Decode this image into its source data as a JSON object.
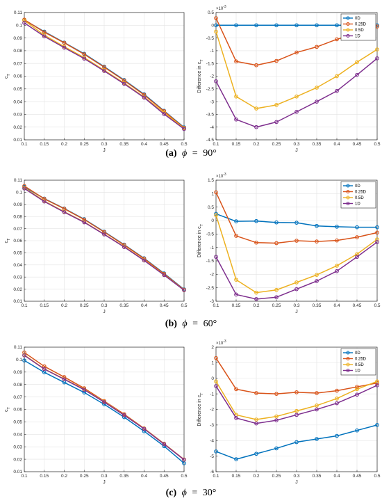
{
  "chart_data": [
    {
      "type": "line",
      "xlabel": "J",
      "ylabel": "c_T",
      "xlim": [
        0.1,
        0.5
      ],
      "ylim": [
        0.01,
        0.11
      ],
      "xticks": [
        "0.1",
        "0.15",
        "0.2",
        "0.25",
        "0.3",
        "0.35",
        "0.4",
        "0.45",
        "0.5"
      ],
      "yticks": [
        "0.01",
        "0.02",
        "0.03",
        "0.04",
        "0.05",
        "0.06",
        "0.07",
        "0.08",
        "0.09",
        "0.1",
        "0.11"
      ],
      "grid": true,
      "x": [
        0.1,
        0.15,
        0.2,
        0.25,
        0.3,
        0.35,
        0.4,
        0.45,
        0.5
      ],
      "series": [
        {
          "color": "#0072BD",
          "values": [
            0.1041,
            0.095,
            0.0864,
            0.0776,
            0.0675,
            0.057,
            0.0458,
            0.0328,
            0.0198
          ]
        },
        {
          "color": "#D95319",
          "values": [
            0.1044,
            0.0946,
            0.0862,
            0.0772,
            0.0671,
            0.0566,
            0.0453,
            0.0325,
            0.0194
          ]
        },
        {
          "color": "#EDB120",
          "values": [
            0.1038,
            0.0922,
            0.0832,
            0.0746,
            0.0647,
            0.0546,
            0.0436,
            0.0314,
            0.019
          ]
        },
        {
          "color": "#7E2F8E",
          "values": [
            0.1019,
            0.0913,
            0.0824,
            0.0738,
            0.0641,
            0.054,
            0.0432,
            0.0302,
            0.0185
          ]
        }
      ]
    },
    {
      "type": "line",
      "xlabel": "J",
      "ylabel": "Difference in c_T",
      "exponent_label": "×10",
      "exponent_power": "-3",
      "xlim": [
        0.1,
        0.5
      ],
      "ylim": [
        -4.5,
        0.5
      ],
      "xticks": [
        "0.1",
        "0.15",
        "0.2",
        "0.25",
        "0.3",
        "0.35",
        "0.4",
        "0.45",
        "0.5"
      ],
      "yticks": [
        "-4.5",
        "-4",
        "-3.5",
        "-3",
        "-2.5",
        "-2",
        "-1.5",
        "-1",
        "-0.5",
        "0",
        "0.5"
      ],
      "grid": true,
      "legend": "top-right",
      "x": [
        0.1,
        0.15,
        0.2,
        0.25,
        0.3,
        0.35,
        0.4,
        0.45,
        0.5
      ],
      "series": [
        {
          "name": "0D",
          "color": "#0072BD",
          "values": [
            0,
            0,
            0,
            0,
            0,
            0,
            0,
            0,
            0
          ]
        },
        {
          "name": "0.25D",
          "color": "#D95319",
          "values": [
            0.28,
            -1.42,
            -1.57,
            -1.4,
            -1.07,
            -0.85,
            -0.55,
            -0.33,
            -0.05
          ]
        },
        {
          "name": "0.5D",
          "color": "#EDB120",
          "values": [
            -0.25,
            -2.8,
            -3.27,
            -3.13,
            -2.8,
            -2.45,
            -2.0,
            -1.45,
            -0.95
          ]
        },
        {
          "name": "1D",
          "color": "#7E2F8E",
          "values": [
            -2.2,
            -3.7,
            -4.0,
            -3.8,
            -3.4,
            -3.0,
            -2.58,
            -1.95,
            -1.3
          ]
        }
      ]
    },
    {
      "type": "line",
      "xlabel": "J",
      "ylabel": "c_T",
      "xlim": [
        0.1,
        0.5
      ],
      "ylim": [
        0.01,
        0.11
      ],
      "xticks": [
        "0.1",
        "0.15",
        "0.2",
        "0.25",
        "0.3",
        "0.35",
        "0.4",
        "0.45",
        "0.5"
      ],
      "yticks": [
        "0.01",
        "0.02",
        "0.03",
        "0.04",
        "0.05",
        "0.06",
        "0.07",
        "0.08",
        "0.09",
        "0.1",
        "0.11"
      ],
      "grid": true,
      "x": [
        0.1,
        0.15,
        0.2,
        0.25,
        0.3,
        0.35,
        0.4,
        0.45,
        0.5
      ],
      "series": [
        {
          "color": "#0072BD",
          "values": [
            0.1045,
            0.0948,
            0.0866,
            0.0778,
            0.0675,
            0.0568,
            0.0455,
            0.033,
            0.0198
          ]
        },
        {
          "color": "#D95319",
          "values": [
            0.1052,
            0.0946,
            0.0864,
            0.0775,
            0.0672,
            0.0565,
            0.0452,
            0.0326,
            0.0195
          ]
        },
        {
          "color": "#EDB120",
          "values": [
            0.1038,
            0.0928,
            0.084,
            0.0755,
            0.0654,
            0.0552,
            0.044,
            0.0318,
            0.0192
          ]
        },
        {
          "color": "#7E2F8E",
          "values": [
            0.1032,
            0.0924,
            0.0836,
            0.0752,
            0.0652,
            0.0548,
            0.0437,
            0.0316,
            0.0191
          ]
        }
      ]
    },
    {
      "type": "line",
      "xlabel": "J",
      "ylabel": "Difference in c_T",
      "exponent_label": "×10",
      "exponent_power": "-3",
      "xlim": [
        0.1,
        0.5
      ],
      "ylim": [
        -3,
        1.5
      ],
      "xticks": [
        "0.1",
        "0.15",
        "0.2",
        "0.25",
        "0.3",
        "0.35",
        "0.4",
        "0.45",
        "0.5"
      ],
      "yticks": [
        "-3",
        "-2.5",
        "-2",
        "-1.5",
        "-1",
        "-0.5",
        "0",
        "0.5",
        "1",
        "1.5"
      ],
      "grid": true,
      "legend": "top-right",
      "x": [
        0.1,
        0.15,
        0.2,
        0.25,
        0.3,
        0.35,
        0.4,
        0.45,
        0.5
      ],
      "series": [
        {
          "name": "0D",
          "color": "#0072BD",
          "values": [
            0.25,
            -0.03,
            -0.02,
            -0.07,
            -0.08,
            -0.2,
            -0.23,
            -0.25,
            -0.25
          ]
        },
        {
          "name": "0.25D",
          "color": "#D95319",
          "values": [
            1.05,
            -0.57,
            -0.82,
            -0.84,
            -0.75,
            -0.78,
            -0.74,
            -0.62,
            -0.45
          ]
        },
        {
          "name": "0.5D",
          "color": "#EDB120",
          "values": [
            0.2,
            -2.2,
            -2.68,
            -2.58,
            -2.3,
            -2.02,
            -1.68,
            -1.25,
            -0.7
          ]
        },
        {
          "name": "1D",
          "color": "#7E2F8E",
          "values": [
            -1.35,
            -2.75,
            -2.92,
            -2.85,
            -2.55,
            -2.25,
            -1.88,
            -1.35,
            -0.8
          ]
        }
      ]
    },
    {
      "type": "line",
      "xlabel": "J",
      "ylabel": "c_T",
      "xlim": [
        0.1,
        0.5
      ],
      "ylim": [
        0.01,
        0.11
      ],
      "xticks": [
        "0.1",
        "0.15",
        "0.2",
        "0.25",
        "0.3",
        "0.35",
        "0.4",
        "0.45",
        "0.5"
      ],
      "yticks": [
        "0.01",
        "0.02",
        "0.03",
        "0.04",
        "0.05",
        "0.06",
        "0.07",
        "0.08",
        "0.09",
        "0.1",
        "0.11"
      ],
      "grid": true,
      "x": [
        0.1,
        0.15,
        0.2,
        0.25,
        0.3,
        0.35,
        0.4,
        0.45,
        0.5
      ],
      "series": [
        {
          "color": "#0072BD",
          "values": [
            0.0993,
            0.0898,
            0.0817,
            0.0736,
            0.0641,
            0.0538,
            0.0425,
            0.0305,
            0.0168
          ]
        },
        {
          "color": "#D95319",
          "values": [
            0.1057,
            0.0946,
            0.086,
            0.077,
            0.0667,
            0.0562,
            0.0448,
            0.0325,
            0.0198
          ]
        },
        {
          "color": "#EDB120",
          "values": [
            0.1037,
            0.0926,
            0.0844,
            0.0761,
            0.0662,
            0.0556,
            0.0446,
            0.0323,
            0.0196
          ]
        },
        {
          "color": "#7E2F8E",
          "values": [
            0.1034,
            0.0924,
            0.0842,
            0.0758,
            0.0659,
            0.0554,
            0.0444,
            0.0321,
            0.0196
          ]
        }
      ]
    },
    {
      "type": "line",
      "xlabel": "J",
      "ylabel": "Difference in c_T",
      "exponent_label": "×10",
      "exponent_power": "-3",
      "xlim": [
        0.1,
        0.5
      ],
      "ylim": [
        -6,
        2
      ],
      "xticks": [
        "0.1",
        "0.15",
        "0.2",
        "0.25",
        "0.3",
        "0.35",
        "0.4",
        "0.45",
        "0.5"
      ],
      "yticks": [
        "-6",
        "-5",
        "-4",
        "-3",
        "-2",
        "-1",
        "0",
        "1",
        "2"
      ],
      "grid": true,
      "legend": "top-right",
      "x": [
        0.1,
        0.15,
        0.2,
        0.25,
        0.3,
        0.35,
        0.4,
        0.45,
        0.5
      ],
      "series": [
        {
          "name": "0D",
          "color": "#0072BD",
          "values": [
            -4.7,
            -5.2,
            -4.85,
            -4.5,
            -4.1,
            -3.9,
            -3.7,
            -3.35,
            -3.0
          ]
        },
        {
          "name": "0.25D",
          "color": "#D95319",
          "values": [
            1.3,
            -0.7,
            -0.95,
            -1.0,
            -0.9,
            -0.95,
            -0.8,
            -0.55,
            -0.3
          ]
        },
        {
          "name": "0.5D",
          "color": "#EDB120",
          "values": [
            -0.2,
            -2.35,
            -2.65,
            -2.45,
            -2.1,
            -1.75,
            -1.3,
            -0.7,
            -0.2
          ]
        },
        {
          "name": "1D",
          "color": "#7E2F8E",
          "values": [
            -0.5,
            -2.55,
            -2.9,
            -2.7,
            -2.35,
            -2.0,
            -1.6,
            -1.05,
            -0.45
          ]
        }
      ]
    }
  ],
  "captions": [
    {
      "label": "(a)",
      "phi": "ϕ",
      "eq": "=",
      "value": "90°"
    },
    {
      "label": "(b)",
      "phi": "ϕ",
      "eq": "=",
      "value": "60°"
    },
    {
      "label": "(c)",
      "phi": "ϕ",
      "eq": "=",
      "value": "30°"
    }
  ]
}
